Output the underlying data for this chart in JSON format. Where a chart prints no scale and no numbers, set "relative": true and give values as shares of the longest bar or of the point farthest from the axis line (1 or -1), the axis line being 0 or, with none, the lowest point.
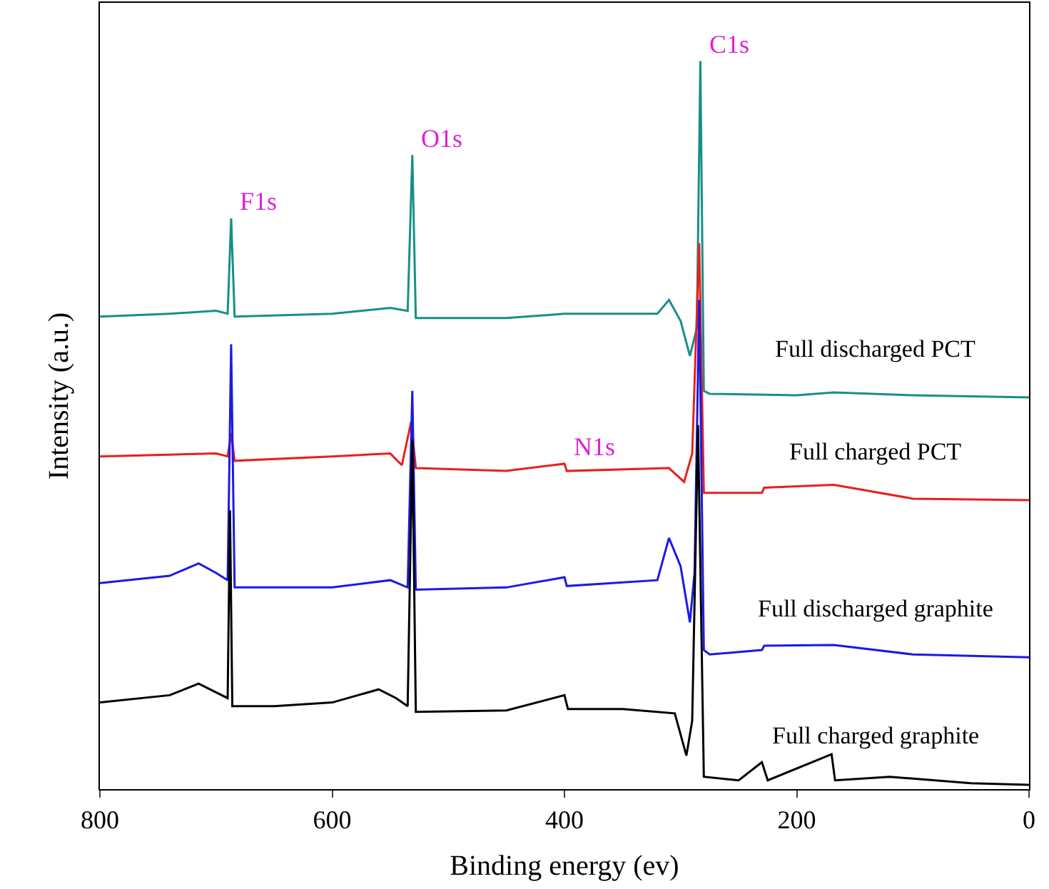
{
  "chart_data": {
    "type": "line",
    "relative": true,
    "xlabel": "Binding energy (ev)",
    "ylabel": "Intensity (a.u.)",
    "xlim": [
      800,
      0
    ],
    "xticks": [
      800,
      600,
      400,
      200,
      0
    ],
    "legend": false,
    "marker": "none",
    "line_style": "solid",
    "series": [
      {
        "name": "Full discharged PCT",
        "color": "#178f8a",
        "x": [
          800,
          740,
          700,
          690,
          687,
          684,
          600,
          550,
          535,
          531,
          528,
          450,
          400,
          320,
          310,
          300,
          292,
          286,
          283,
          280,
          275,
          200,
          168,
          100,
          0
        ],
        "values": [
          0.649,
          0.653,
          0.657,
          0.653,
          0.784,
          0.649,
          0.653,
          0.661,
          0.657,
          0.871,
          0.647,
          0.647,
          0.653,
          0.653,
          0.672,
          0.643,
          0.595,
          0.633,
          1.0,
          0.547,
          0.543,
          0.541,
          0.545,
          0.541,
          0.538
        ]
      },
      {
        "name": "Full charged PCT",
        "color": "#e8201c",
        "x": [
          800,
          700,
          690,
          687,
          684,
          600,
          550,
          540,
          532,
          528,
          450,
          400,
          398,
          310,
          297,
          290,
          284,
          280,
          230,
          228,
          168,
          100,
          0
        ],
        "values": [
          0.457,
          0.461,
          0.457,
          0.489,
          0.451,
          0.457,
          0.461,
          0.445,
          0.505,
          0.441,
          0.437,
          0.447,
          0.437,
          0.441,
          0.422,
          0.461,
          0.75,
          0.407,
          0.407,
          0.414,
          0.418,
          0.399,
          0.397
        ]
      },
      {
        "name": "Full discharged graphite",
        "color": "#1a1ae6",
        "x": [
          800,
          740,
          715,
          700,
          690,
          687,
          684,
          600,
          550,
          535,
          531,
          528,
          450,
          400,
          398,
          320,
          310,
          300,
          292,
          288,
          284,
          280,
          275,
          230,
          228,
          168,
          100,
          0
        ],
        "values": [
          0.283,
          0.293,
          0.31,
          0.297,
          0.287,
          0.611,
          0.277,
          0.277,
          0.287,
          0.277,
          0.547,
          0.274,
          0.277,
          0.291,
          0.279,
          0.287,
          0.345,
          0.306,
          0.229,
          0.297,
          0.672,
          0.191,
          0.185,
          0.191,
          0.197,
          0.198,
          0.185,
          0.181
        ]
      },
      {
        "name": "Full charged graphite",
        "color": "#000000",
        "x": [
          800,
          740,
          715,
          700,
          690,
          688,
          686,
          650,
          600,
          560,
          545,
          535,
          531,
          528,
          450,
          400,
          397,
          350,
          305,
          295,
          290,
          285,
          280,
          250,
          230,
          225,
          170,
          167,
          120,
          50,
          0
        ],
        "values": [
          0.119,
          0.129,
          0.145,
          0.133,
          0.125,
          0.383,
          0.114,
          0.114,
          0.119,
          0.137,
          0.125,
          0.114,
          0.48,
          0.106,
          0.108,
          0.129,
          0.11,
          0.11,
          0.104,
          0.046,
          0.094,
          0.5,
          0.017,
          0.012,
          0.037,
          0.012,
          0.048,
          0.012,
          0.017,
          0.008,
          0.006
        ]
      }
    ],
    "annotations": [
      {
        "text": "F1s",
        "x": 687,
        "y": 0.784
      },
      {
        "text": "O1s",
        "x": 531,
        "y": 0.871
      },
      {
        "text": "C1s",
        "x": 283,
        "y": 1.0
      },
      {
        "text": "N1s",
        "x": 400,
        "y": 0.447
      }
    ]
  }
}
